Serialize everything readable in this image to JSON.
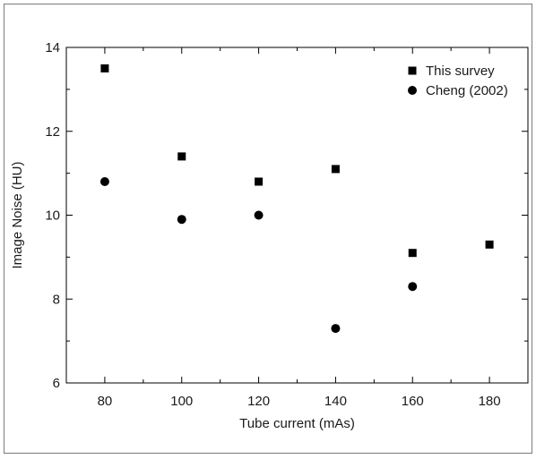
{
  "chart_data": {
    "type": "scatter",
    "title": "",
    "xlabel": "Tube current (mAs)",
    "ylabel": "Image Noise (HU)",
    "xlim": [
      70,
      190
    ],
    "ylim": [
      6,
      14
    ],
    "x_ticks": [
      80,
      100,
      120,
      140,
      160,
      180
    ],
    "y_ticks": [
      6,
      8,
      10,
      12,
      14
    ],
    "grid": false,
    "legend_position": "top-right",
    "series": [
      {
        "name": "This survey",
        "marker": "square",
        "color": "#000000",
        "points": [
          {
            "x": 80,
            "y": 13.5
          },
          {
            "x": 100,
            "y": 11.4
          },
          {
            "x": 120,
            "y": 10.8
          },
          {
            "x": 140,
            "y": 11.1
          },
          {
            "x": 160,
            "y": 9.1
          },
          {
            "x": 180,
            "y": 9.3
          }
        ]
      },
      {
        "name": "Cheng (2002)",
        "marker": "circle",
        "color": "#000000",
        "points": [
          {
            "x": 80,
            "y": 10.8
          },
          {
            "x": 100,
            "y": 9.9
          },
          {
            "x": 120,
            "y": 10.0
          },
          {
            "x": 140,
            "y": 7.3
          },
          {
            "x": 160,
            "y": 8.3
          }
        ]
      }
    ]
  }
}
